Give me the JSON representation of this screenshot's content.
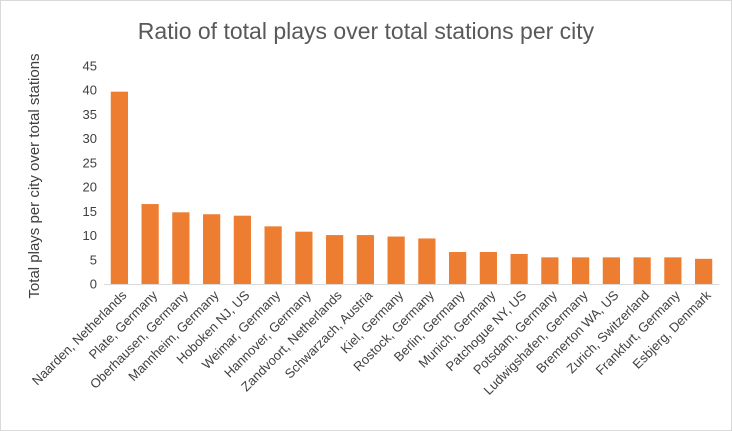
{
  "chart_data": {
    "type": "bar",
    "title": "Ratio of total plays over total stations per city",
    "xlabel": "",
    "ylabel": "Total plays per city over total stations",
    "ylim": [
      0,
      45
    ],
    "yticks": [
      0,
      5,
      10,
      15,
      20,
      25,
      30,
      35,
      40,
      45
    ],
    "grid": false,
    "legend": "none",
    "bar_color": "#ED7D31",
    "categories": [
      "Naarden, Netherlands",
      "Plate, Germany",
      "Oberhausen, Germany",
      "Mannheim, Germany",
      "Hoboken NJ, US",
      "Weimar, Germany",
      "Hannover, Germany",
      "Zandvoort, Netherlands",
      "Schwarzach, Austria",
      "Kiel, Germany",
      "Rostock, Germany",
      "Berlin, Germany",
      "Munich, Germany",
      "Patchogue NY, US",
      "Potsdam, Germany",
      "Ludwigshafen, Germany",
      "Bremerton WA, US",
      "Zurich, Switzerland",
      "Frankfurt, Germany",
      "Esbjerg, Denmark"
    ],
    "values": [
      39.7,
      16.5,
      14.8,
      14.4,
      14.1,
      11.9,
      10.8,
      10.1,
      10.1,
      9.8,
      9.4,
      6.6,
      6.6,
      6.2,
      5.5,
      5.5,
      5.5,
      5.5,
      5.5,
      5.2
    ]
  }
}
